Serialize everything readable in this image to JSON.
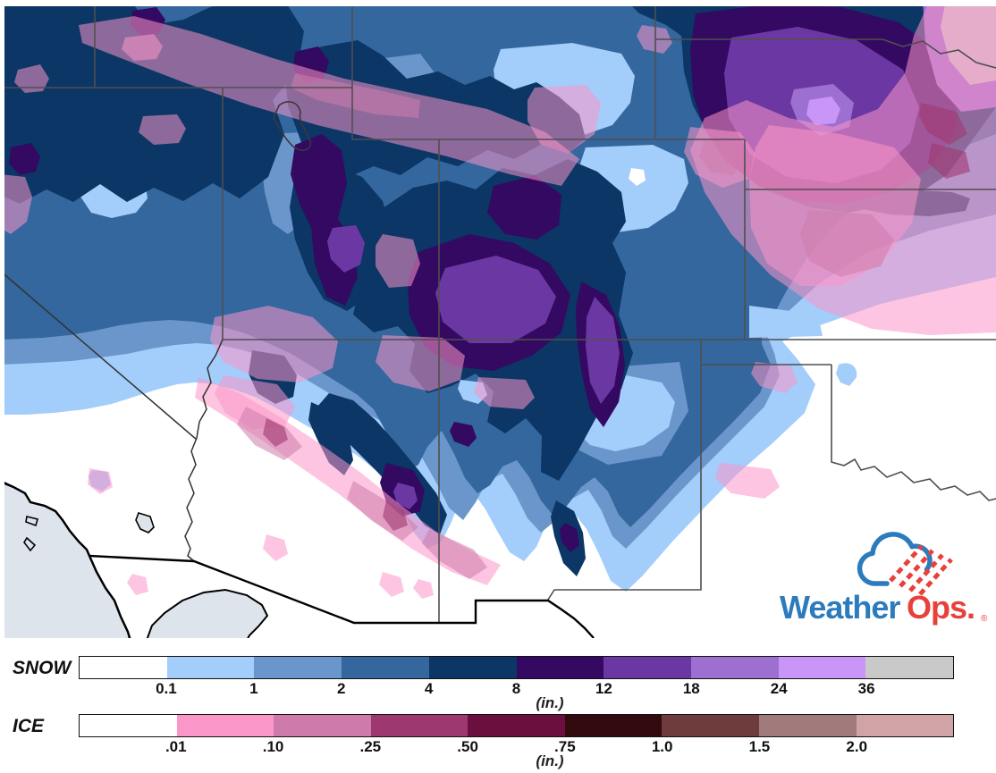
{
  "logo": {
    "weather": "Weather",
    "ops": "Ops.",
    "registered": "®",
    "blue": "#2b7bbd",
    "red": "#e8403a"
  },
  "legend": {
    "snow": {
      "label": "SNOW",
      "unit": "(in.)",
      "ticks": [
        "0.1",
        "1",
        "2",
        "4",
        "8",
        "12",
        "18",
        "24",
        "36"
      ],
      "colors_ref": "snow"
    },
    "ice": {
      "label": "ICE",
      "unit": "(in.)",
      "ticks": [
        ".01",
        ".10",
        ".25",
        ".50",
        ".75",
        "1.0",
        "1.5",
        "2.0"
      ],
      "colors_ref": "ice"
    }
  },
  "palette": {
    "snow": [
      "#ffffff",
      "#a3cdfa",
      "#6b96cc",
      "#33679e",
      "#0b3666",
      "#330961",
      "#6b38a3",
      "#9c6fd1",
      "#c996f8",
      "#c9c9c9"
    ],
    "ice": [
      "#ffffff",
      "#fb96c8",
      "#ce7bab",
      "#9e3870",
      "#6b0f3f",
      "#330a0d",
      "#6f3c3e",
      "#a17a7c",
      "#d0a3a6"
    ],
    "ocean": "#dde4ec",
    "state_border": "#4f4f4f",
    "river_border": "#333333",
    "intl_border": "#000000",
    "lake_outline": "#3a3a3a",
    "text": "#111111"
  }
}
